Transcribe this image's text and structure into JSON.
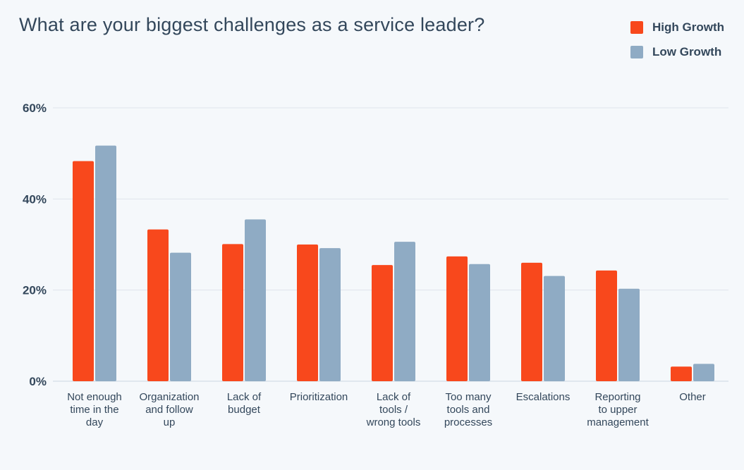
{
  "chart_data": {
    "type": "bar",
    "title": "What are your biggest challenges as a service leader?",
    "categories": [
      "Not enough time in the day",
      "Organization and follow up",
      "Lack of budget",
      "Prioritization",
      "Lack of tools / wrong tools",
      "Too many tools and processes",
      "Escalations",
      "Reporting to upper management",
      "Other"
    ],
    "category_lines": [
      [
        "Not enough",
        "time in the",
        "day"
      ],
      [
        "Organization",
        "and follow",
        "up"
      ],
      [
        "Lack of",
        "budget"
      ],
      [
        "Prioritization"
      ],
      [
        "Lack of",
        "tools /",
        "wrong tools"
      ],
      [
        "Too many",
        "tools and",
        "processes"
      ],
      [
        "Escalations"
      ],
      [
        "Reporting",
        "to upper",
        "management"
      ],
      [
        "Other"
      ]
    ],
    "series": [
      {
        "name": "High Growth",
        "color": "#f8481c",
        "values": [
          48.3,
          33.3,
          30.1,
          30.0,
          25.5,
          27.4,
          26.0,
          24.3,
          3.2
        ]
      },
      {
        "name": "Low Growth",
        "color": "#8fabc4",
        "values": [
          51.7,
          28.2,
          35.5,
          29.2,
          30.6,
          25.7,
          23.1,
          20.3,
          3.8
        ]
      }
    ],
    "yticks": [
      0,
      20,
      40,
      60
    ],
    "ytick_labels": [
      "0%",
      "20%",
      "40%",
      "60%"
    ],
    "ylim": [
      0,
      60
    ],
    "grid": true,
    "legend_position": "top-right",
    "xlabel": "",
    "ylabel": ""
  }
}
